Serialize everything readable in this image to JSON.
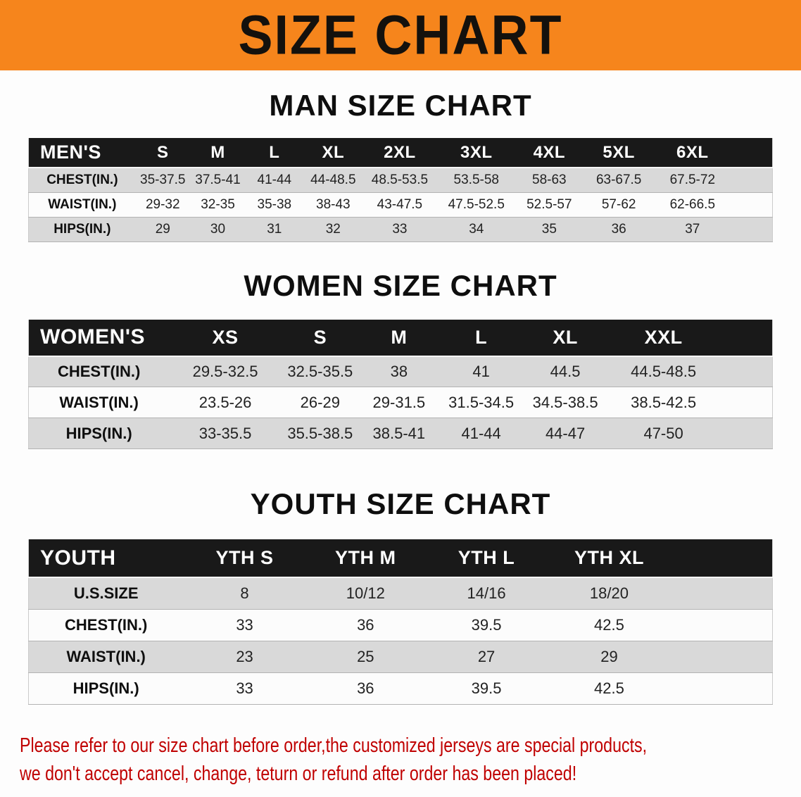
{
  "banner": {
    "title": "SIZE CHART"
  },
  "colors": {
    "banner_orange": "#f6851c",
    "header_black": "#191919",
    "row_gray": "#d9d9d9",
    "row_white": "#fcfcfc",
    "note_red": "#c00000"
  },
  "chart_data": [
    {
      "type": "table",
      "title": "MAN SIZE CHART",
      "columns": [
        "MEN'S",
        "S",
        "M",
        "L",
        "XL",
        "2XL",
        "3XL",
        "4XL",
        "5XL",
        "6XL"
      ],
      "rows": [
        [
          "CHEST(IN.)",
          "35-37.5",
          "37.5-41",
          "41-44",
          "44-48.5",
          "48.5-53.5",
          "53.5-58",
          "58-63",
          "63-67.5",
          "67.5-72"
        ],
        [
          "WAIST(IN.)",
          "29-32",
          "32-35",
          "35-38",
          "38-43",
          "43-47.5",
          "47.5-52.5",
          "52.5-57",
          "57-62",
          "62-66.5"
        ],
        [
          "HIPS(IN.)",
          "29",
          "30",
          "31",
          "32",
          "33",
          "34",
          "35",
          "36",
          "37"
        ]
      ]
    },
    {
      "type": "table",
      "title": "WOMEN SIZE CHART",
      "columns": [
        "WOMEN'S",
        "XS",
        "S",
        "M",
        "L",
        "XL",
        "XXL"
      ],
      "rows": [
        [
          "CHEST(IN.)",
          "29.5-32.5",
          "32.5-35.5",
          "38",
          "41",
          "44.5",
          "44.5-48.5"
        ],
        [
          "WAIST(IN.)",
          "23.5-26",
          "26-29",
          "29-31.5",
          "31.5-34.5",
          "34.5-38.5",
          "38.5-42.5"
        ],
        [
          "HIPS(IN.)",
          "33-35.5",
          "35.5-38.5",
          "38.5-41",
          "41-44",
          "44-47",
          "47-50"
        ]
      ]
    },
    {
      "type": "table",
      "title": "YOUTH SIZE CHART",
      "columns": [
        "YOUTH",
        "YTH S",
        "YTH M",
        "YTH L",
        "YTH XL"
      ],
      "rows": [
        [
          "U.S.SIZE",
          "8",
          "10/12",
          "14/16",
          "18/20"
        ],
        [
          "CHEST(IN.)",
          "33",
          "36",
          "39.5",
          "42.5"
        ],
        [
          "WAIST(IN.)",
          "23",
          "25",
          "27",
          "29"
        ],
        [
          "HIPS(IN.)",
          "33",
          "36",
          "39.5",
          "42.5"
        ]
      ]
    }
  ],
  "note": {
    "lines": [
      "Please refer to our size chart before order,the customized jerseys are special products,",
      "we don't accept cancel, change, teturn or refund after order has been placed!"
    ]
  }
}
